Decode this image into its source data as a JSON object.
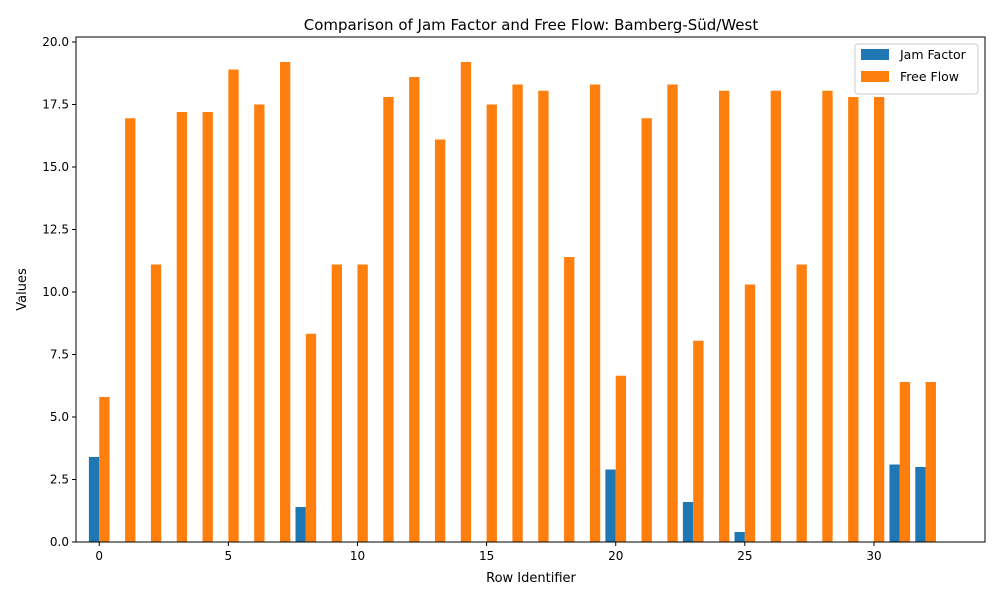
{
  "colors": {
    "jam": "#1f77b4",
    "free": "#ff7f0e"
  },
  "chart_data": {
    "type": "bar",
    "title": "Comparison of Jam Factor and Free Flow: Bamberg-Süd/West",
    "xlabel": "Row Identifier",
    "ylabel": "Values",
    "ylim": [
      0,
      20.2
    ],
    "xlim": [
      -0.9,
      34.3
    ],
    "xticks": [
      0,
      5,
      10,
      15,
      20,
      25,
      30
    ],
    "yticks": [
      "0.0",
      "2.5",
      "5.0",
      "7.5",
      "10.0",
      "12.5",
      "15.0",
      "17.5",
      "20.0"
    ],
    "legend_position": "top-right",
    "grid": false,
    "x": [
      0,
      1,
      2,
      3,
      4,
      5,
      6,
      7,
      8,
      9,
      10,
      11,
      12,
      13,
      14,
      15,
      16,
      17,
      18,
      19,
      20,
      21,
      22,
      23,
      24,
      25,
      26,
      27,
      28,
      29,
      30,
      31,
      32
    ],
    "series": [
      {
        "name": "Jam Factor",
        "values": [
          3.4,
          0,
          0,
          0,
          0,
          0,
          0,
          0,
          1.4,
          0,
          0,
          0,
          0,
          0,
          0,
          0,
          0,
          0,
          0,
          0,
          2.9,
          0,
          0,
          1.6,
          0,
          0.4,
          0,
          0,
          0,
          0,
          0,
          3.1,
          3.0
        ]
      },
      {
        "name": "Free Flow",
        "values": [
          5.8,
          16.95,
          11.1,
          17.2,
          17.2,
          18.9,
          17.5,
          19.2,
          8.33,
          11.1,
          11.1,
          17.8,
          18.6,
          16.1,
          19.2,
          17.5,
          18.3,
          18.05,
          11.4,
          18.3,
          6.65,
          16.95,
          18.3,
          8.05,
          18.05,
          10.3,
          18.05,
          11.1,
          18.05,
          17.8,
          17.8,
          6.4,
          6.4
        ]
      }
    ]
  }
}
